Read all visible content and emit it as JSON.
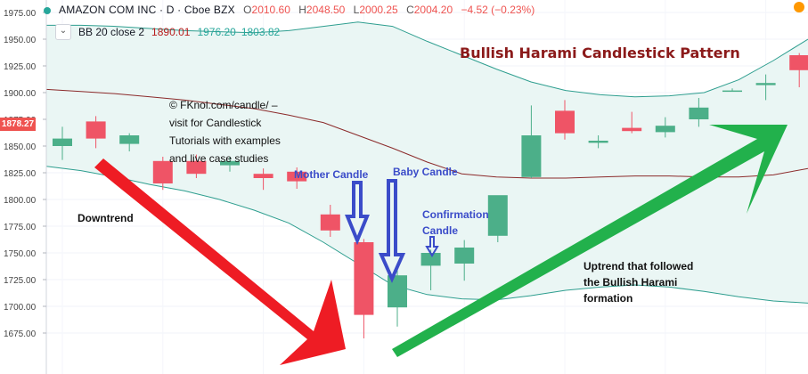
{
  "header": {
    "symbol": "AMAZON COM INC · D · Cboe BZX",
    "open_label": "O",
    "open": "2010.60",
    "high_label": "H",
    "high": "2048.50",
    "low_label": "L",
    "low": "2000.25",
    "close_label": "C",
    "close": "2004.20",
    "change": "−4.52 (−0.23%)"
  },
  "indicator": {
    "name": "BB 20 close 2",
    "basis": "1890.01",
    "upper": "1976.20",
    "lower": "1803.82",
    "chevron": "⌄"
  },
  "price_tag": "1878.27",
  "annotations": {
    "title": "Bullish Harami Candlestick Pattern",
    "copyright_lines": [
      "© FKnol.com/candle/ –",
      "visit for Candlestick",
      "Tutorials with examples",
      "and live case studies"
    ],
    "downtrend": "Downtrend",
    "mother_candle": "Mother Candle",
    "baby_candle": "Baby Candle",
    "confirmation_lines": [
      "Confirmation",
      "Candle"
    ],
    "uptrend_lines": [
      "Uptrend that followed",
      "the Bullish Harami",
      "formation"
    ]
  },
  "colors": {
    "up": "#4caf89",
    "down": "#ef5466",
    "band_fill": "#eaf6f4",
    "band_line": "#2e9e8f",
    "basis_line": "#8b2a2a",
    "red_arrow": "#ee1c24",
    "green_arrow": "#22b14c",
    "blue_arrow": "#3b4cc9"
  },
  "chart_data": {
    "type": "candlestick",
    "ylim": [
      1655,
      1980
    ],
    "y_ticks": [
      1675,
      1700,
      1725,
      1750,
      1775,
      1800,
      1825,
      1850,
      1875,
      1900,
      1925,
      1950,
      1975
    ],
    "grid": true,
    "candles": [
      {
        "o": 1850,
        "h": 1868,
        "l": 1837,
        "c": 1857
      },
      {
        "o": 1873,
        "h": 1878,
        "l": 1848,
        "c": 1857
      },
      {
        "o": 1852,
        "h": 1862,
        "l": 1845,
        "c": 1860
      },
      {
        "o": 1836,
        "h": 1840,
        "l": 1809,
        "c": 1815
      },
      {
        "o": 1836,
        "h": 1842,
        "l": 1820,
        "c": 1824
      },
      {
        "o": 1832,
        "h": 1840,
        "l": 1826,
        "c": 1836
      },
      {
        "o": 1824,
        "h": 1829,
        "l": 1809,
        "c": 1820
      },
      {
        "o": 1826,
        "h": 1830,
        "l": 1810,
        "c": 1817
      },
      {
        "o": 1786,
        "h": 1795,
        "l": 1765,
        "c": 1771
      },
      {
        "o": 1760,
        "h": 1763,
        "l": 1670,
        "c": 1692
      },
      {
        "o": 1699,
        "h": 1734,
        "l": 1681,
        "c": 1729
      },
      {
        "o": 1738,
        "h": 1753,
        "l": 1715,
        "c": 1750
      },
      {
        "o": 1740,
        "h": 1762,
        "l": 1724,
        "c": 1755
      },
      {
        "o": 1766,
        "h": 1803,
        "l": 1760,
        "c": 1804
      },
      {
        "o": 1821,
        "h": 1888,
        "l": 1820,
        "c": 1860
      },
      {
        "o": 1883,
        "h": 1893,
        "l": 1856,
        "c": 1862
      },
      {
        "o": 1853,
        "h": 1860,
        "l": 1848,
        "c": 1855
      },
      {
        "o": 1867,
        "h": 1882,
        "l": 1862,
        "c": 1864
      },
      {
        "o": 1863,
        "h": 1877,
        "l": 1858,
        "c": 1869
      },
      {
        "o": 1875,
        "h": 1895,
        "l": 1868,
        "c": 1886
      },
      {
        "o": 1901,
        "h": 1904,
        "l": 1901,
        "c": 1902
      },
      {
        "o": 1907,
        "h": 1917,
        "l": 1893,
        "c": 1909
      },
      {
        "o": 1935,
        "h": 1937,
        "l": 1905,
        "c": 1921
      }
    ],
    "bb_upper": [
      1963,
      1963,
      1962,
      1960,
      1958,
      1957,
      1956,
      1958,
      1962,
      1966,
      1962,
      1948,
      1935,
      1922,
      1910,
      1902,
      1898,
      1896,
      1897,
      1900,
      1912,
      1930,
      1950
    ],
    "bb_basis": [
      1903,
      1901,
      1899,
      1896,
      1893,
      1889,
      1885,
      1879,
      1872,
      1860,
      1848,
      1835,
      1824,
      1821,
      1820,
      1820,
      1821,
      1822,
      1822,
      1821,
      1821,
      1823,
      1829
    ],
    "bb_lower": [
      1831,
      1827,
      1821,
      1814,
      1808,
      1800,
      1790,
      1778,
      1760,
      1740,
      1720,
      1711,
      1707,
      1706,
      1710,
      1715,
      1718,
      1720,
      1718,
      1714,
      1709,
      1705,
      1703
    ]
  }
}
